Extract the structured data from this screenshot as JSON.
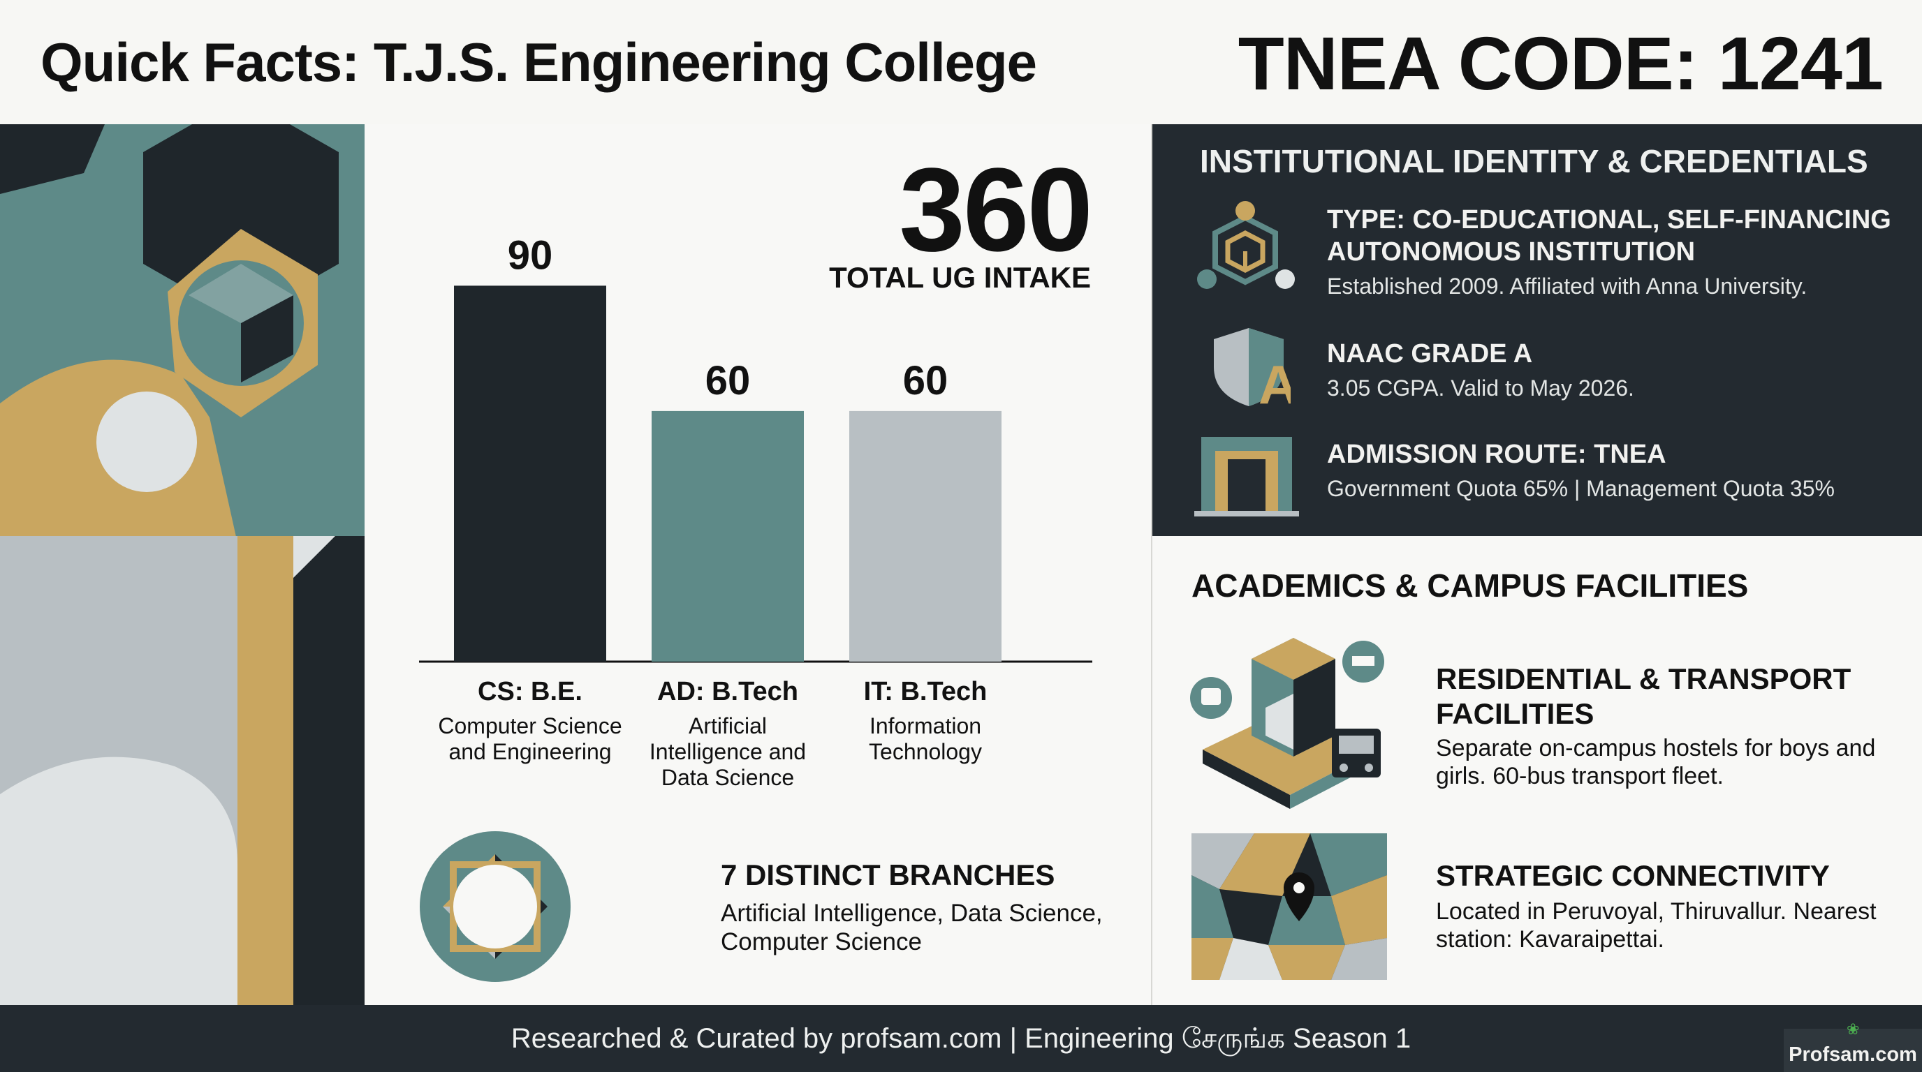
{
  "header": {
    "title": "Quick Facts: T.J.S. Engineering College",
    "code": "TNEA CODE: 1241"
  },
  "colors": {
    "dark": "#1f262b",
    "teal": "#5e8a88",
    "gray": "#b8bfc3",
    "gold": "#c9a660",
    "light": "#dfe3e4"
  },
  "chart_data": {
    "type": "bar",
    "categories": [
      "CS: B.E.",
      "AD: B.Tech",
      "IT: B.Tech"
    ],
    "category_descriptions": [
      "Computer Science and Engineering",
      "Artificial Intelligence and Data Science",
      "Information Technology"
    ],
    "values": [
      90,
      60,
      60
    ],
    "value_labels": [
      "90",
      "60",
      "60"
    ],
    "bar_colors": [
      "#1f262b",
      "#5e8a88",
      "#b8bfc3"
    ],
    "ylim": [
      0,
      100
    ],
    "grid": false,
    "legend": "none",
    "title": "",
    "xlabel": "",
    "ylabel": ""
  },
  "total": {
    "value": "360",
    "label": "TOTAL UG INTAKE"
  },
  "branches": {
    "title": "7 DISTINCT BRANCHES",
    "text": "Artificial Intelligence, Data Science, Computer Science"
  },
  "credentials": {
    "title": "INSTITUTIONAL IDENTITY & CREDENTIALS",
    "items": [
      {
        "icon": "network-cube-icon",
        "title": "TYPE: CO-EDUCATIONAL, SELF-FINANCING AUTONOMOUS INSTITUTION",
        "text": "Established 2009. Affiliated with Anna University."
      },
      {
        "icon": "shield-grade-icon",
        "title": "NAAC GRADE A",
        "text": "3.05 CGPA. Valid to May 2026."
      },
      {
        "icon": "gateway-icon",
        "title": "ADMISSION ROUTE: TNEA",
        "text": "Government Quota 65% | Management Quota 35%"
      }
    ]
  },
  "facilities": {
    "title": "ACADEMICS & CAMPUS FACILITIES",
    "items": [
      {
        "icon": "campus-transport-icon",
        "title": "RESIDENTIAL & TRANSPORT FACILITIES",
        "text": "Separate on-campus hostels for boys and girls. 60-bus transport fleet."
      },
      {
        "icon": "map-pin-icon",
        "title": "STRATEGIC CONNECTIVITY",
        "text": "Located in Peruvoyal, Thiruvallur. Nearest station: Kavaraipettai."
      }
    ]
  },
  "footer": {
    "credit": "Researched & Curated by profsam.com | Engineering சேருங்க Season 1",
    "badge": "Profsam.com"
  }
}
